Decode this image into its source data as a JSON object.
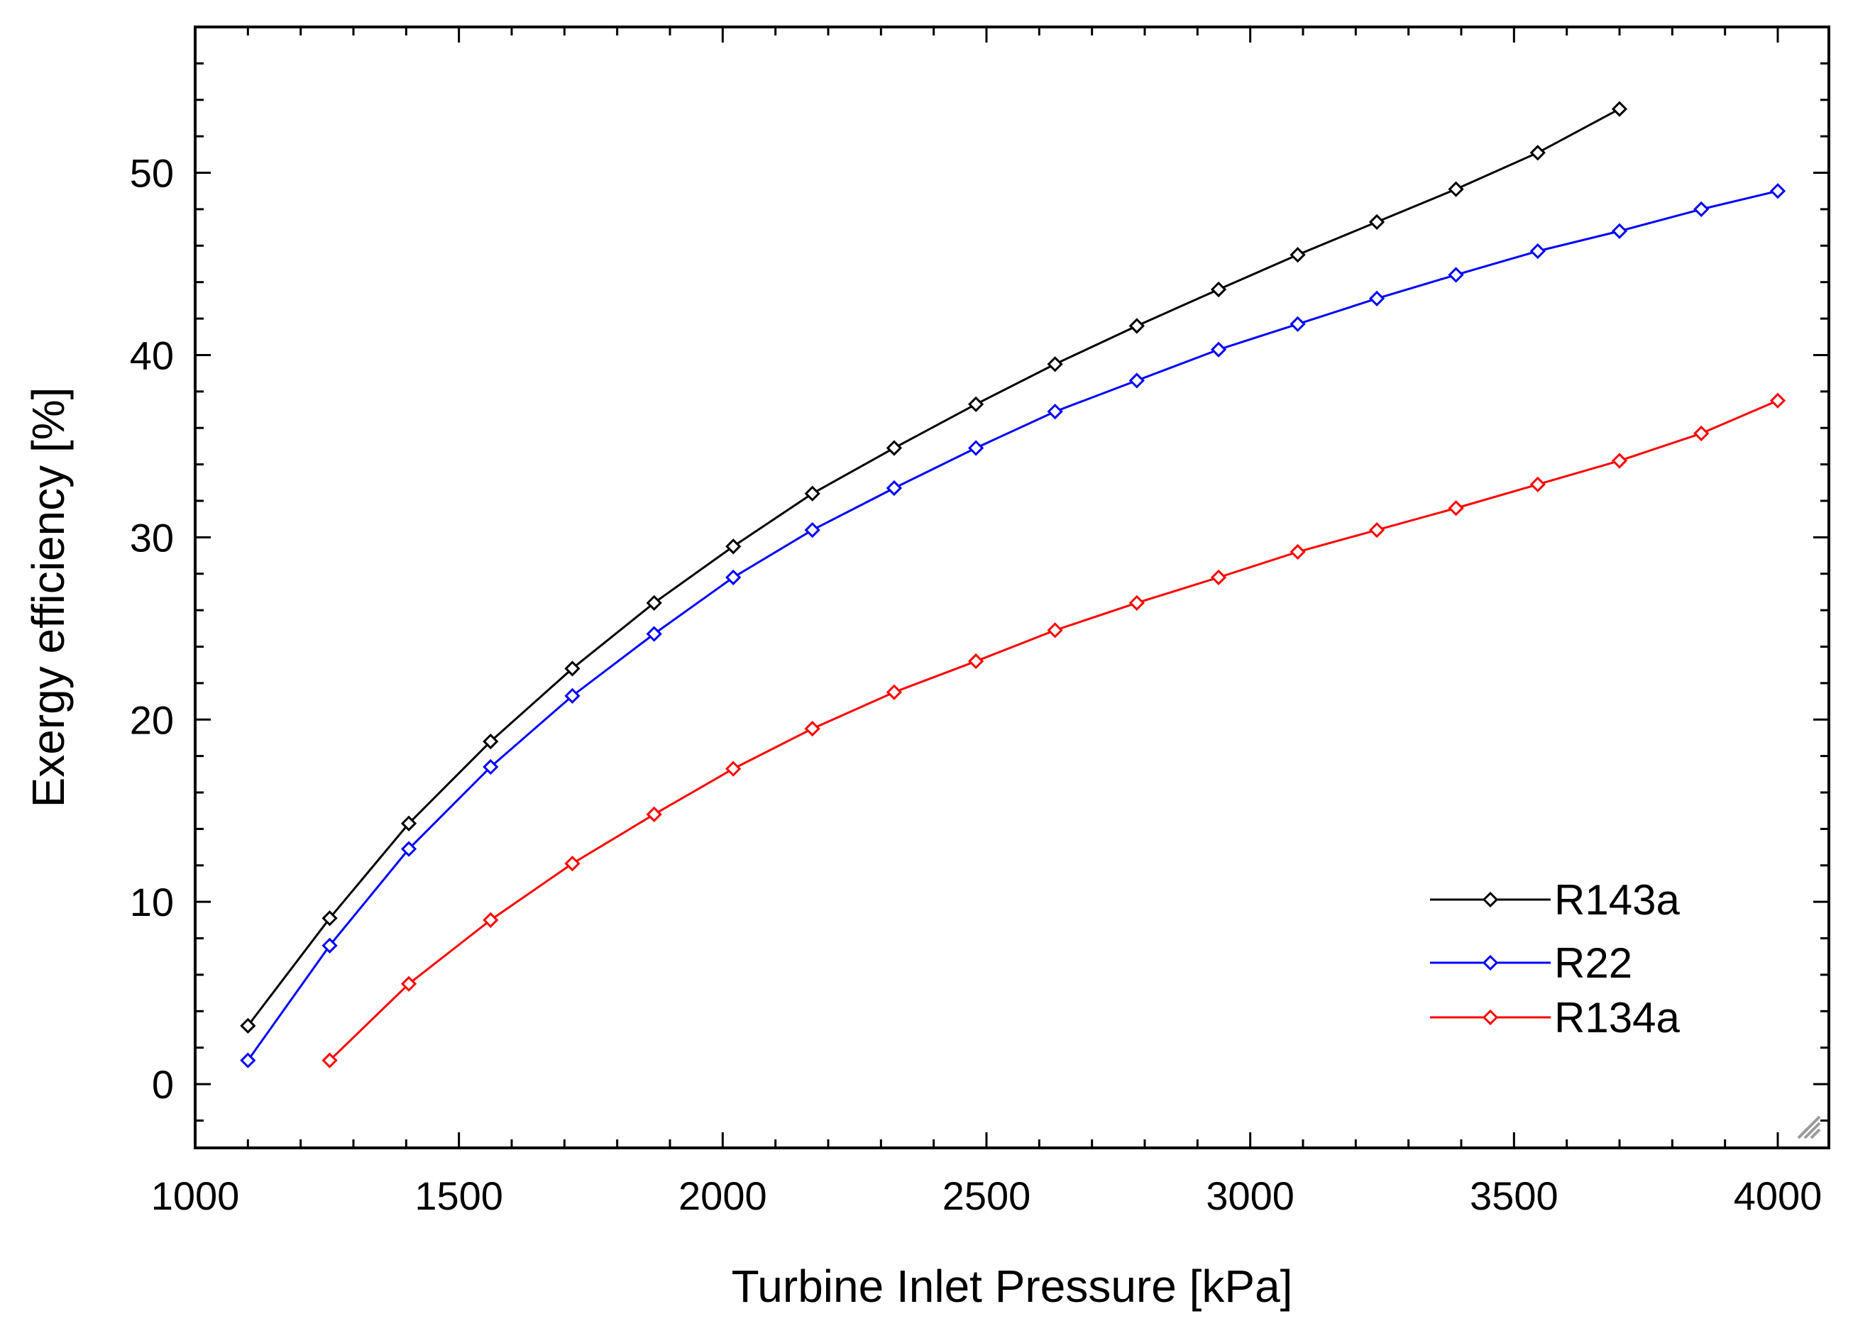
{
  "chart_data": {
    "type": "line",
    "title": "",
    "xlabel": "Turbine Inlet Pressure [kPa]",
    "ylabel": "Exergy efficiency [%]",
    "xlim": [
      1000,
      4000
    ],
    "ylim": [
      -3.5,
      58
    ],
    "xticks": [
      1000,
      1500,
      2000,
      2500,
      3000,
      3500,
      4000
    ],
    "yticks": [
      0,
      10,
      20,
      30,
      40,
      50
    ],
    "xtick_labels": [
      "1000",
      "1500",
      "2000",
      "2500",
      "3000",
      "3500",
      "4000"
    ],
    "ytick_labels": [
      "0",
      "10",
      "20",
      "30",
      "40",
      "50"
    ],
    "legend_position": "bottom-right",
    "marker": "open-diamond",
    "series": [
      {
        "name": "R143a",
        "color": "#000000",
        "x": [
          1100,
          1255,
          1405,
          1560,
          1715,
          1870,
          2020,
          2170,
          2325,
          2480,
          2630,
          2785,
          2940,
          3090,
          3240,
          3390,
          3545,
          3700
        ],
        "y": [
          3.2,
          9.1,
          14.3,
          18.8,
          22.8,
          26.4,
          29.5,
          32.4,
          34.9,
          37.3,
          39.5,
          41.6,
          43.6,
          45.5,
          47.3,
          49.1,
          51.1,
          53.5
        ]
      },
      {
        "name": "R22",
        "color": "#0000ff",
        "x": [
          1100,
          1255,
          1405,
          1560,
          1715,
          1870,
          2020,
          2170,
          2325,
          2480,
          2630,
          2785,
          2940,
          3090,
          3240,
          3390,
          3545,
          3700,
          3855,
          4000
        ],
        "y": [
          1.3,
          7.6,
          12.9,
          17.4,
          21.3,
          24.7,
          27.8,
          30.4,
          32.7,
          34.9,
          36.9,
          38.6,
          40.3,
          41.7,
          43.1,
          44.4,
          45.7,
          46.8,
          48.0,
          49.0
        ]
      },
      {
        "name": "R134a",
        "color": "#ff0000",
        "x": [
          1255,
          1405,
          1560,
          1715,
          1870,
          2020,
          2170,
          2325,
          2480,
          2630,
          2785,
          2940,
          3090,
          3240,
          3390,
          3545,
          3700,
          3855,
          4000
        ],
        "y": [
          1.3,
          5.5,
          9.0,
          12.1,
          14.8,
          17.3,
          19.5,
          21.5,
          23.2,
          24.9,
          26.4,
          27.8,
          29.2,
          30.4,
          31.6,
          32.9,
          34.2,
          35.7,
          37.5
        ]
      }
    ]
  }
}
